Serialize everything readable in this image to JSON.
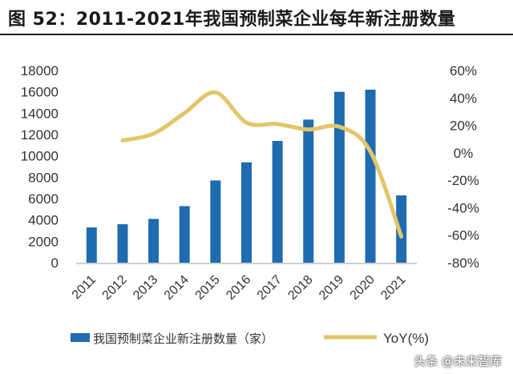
{
  "title": "图 52：2011-2021年我国预制菜企业每年新注册数量",
  "watermark": "头条 @未来智库",
  "colors": {
    "bar": "#1f6bb0",
    "line": "#e2c66a",
    "text": "#333333"
  },
  "chart_data": {
    "type": "bar",
    "categories": [
      "2011",
      "2012",
      "2013",
      "2014",
      "2015",
      "2016",
      "2017",
      "2018",
      "2019",
      "2020",
      "2021"
    ],
    "series": [
      {
        "name": "我国预制菜企业新注册数量（家）",
        "type": "bar",
        "axis": "left",
        "values": [
          3300,
          3600,
          4100,
          5300,
          7700,
          9400,
          11400,
          13400,
          16000,
          16200,
          6300
        ]
      },
      {
        "name": "YoY(%)",
        "type": "line",
        "axis": "right",
        "values": [
          null,
          9,
          14,
          29,
          44,
          22,
          21,
          17,
          19,
          1,
          -61
        ]
      }
    ],
    "y_left": {
      "min": 0,
      "max": 18000,
      "ticks": [
        "0",
        "2000",
        "4000",
        "6000",
        "8000",
        "10000",
        "12000",
        "14000",
        "16000",
        "18000"
      ]
    },
    "y_right": {
      "min": -80,
      "max": 60,
      "ticks": [
        "-80%",
        "-60%",
        "-40%",
        "-20%",
        "0%",
        "20%",
        "40%",
        "60%"
      ]
    },
    "grid": false,
    "legend_position": "bottom"
  }
}
